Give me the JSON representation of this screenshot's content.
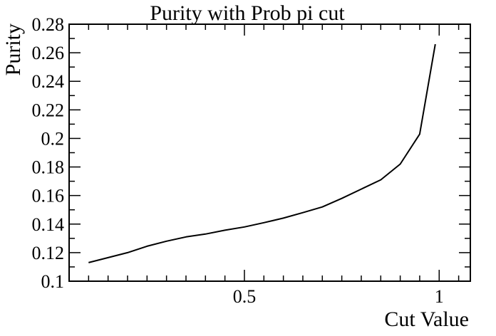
{
  "chart_data": {
    "type": "line",
    "title": "Purity with Prob pi cut",
    "xlabel": "Cut Value",
    "ylabel": "Purity",
    "xlim": [
      0.05,
      1.08
    ],
    "ylim": [
      0.1,
      0.28
    ],
    "x_ticks": [
      0.5,
      1
    ],
    "x_tick_labels": [
      "0.5",
      "1"
    ],
    "y_ticks": [
      0.1,
      0.12,
      0.14,
      0.16,
      0.18,
      0.2,
      0.22,
      0.24,
      0.26,
      0.28
    ],
    "y_tick_labels": [
      "0.1",
      "0.12",
      "0.14",
      "0.16",
      "0.18",
      "0.2",
      "0.22",
      "0.24",
      "0.26",
      "0.28"
    ],
    "grid": false,
    "legend": "none",
    "series": [
      {
        "color": "#000000",
        "x": [
          0.1,
          0.15,
          0.2,
          0.25,
          0.3,
          0.35,
          0.4,
          0.45,
          0.5,
          0.55,
          0.6,
          0.65,
          0.7,
          0.75,
          0.8,
          0.85,
          0.9,
          0.95,
          0.99
        ],
        "y": [
          0.113,
          0.1165,
          0.12,
          0.1245,
          0.128,
          0.131,
          0.133,
          0.1357,
          0.138,
          0.141,
          0.1442,
          0.148,
          0.152,
          0.158,
          0.1645,
          0.171,
          0.182,
          0.203,
          0.266
        ]
      }
    ]
  }
}
